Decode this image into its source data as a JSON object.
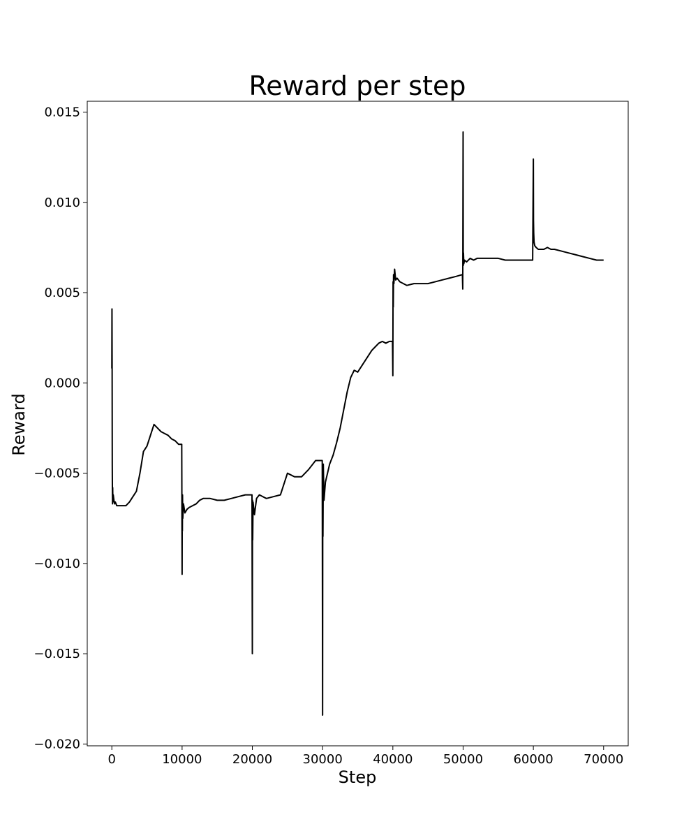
{
  "chart_data": {
    "type": "line",
    "title": "Reward per step",
    "xlabel": "Step",
    "ylabel": "Reward",
    "xlim": [
      -3500,
      73500
    ],
    "ylim": [
      -0.0201,
      0.0156
    ],
    "xticks": [
      0,
      10000,
      20000,
      30000,
      40000,
      50000,
      60000,
      70000
    ],
    "xtick_labels": [
      "0",
      "10000",
      "20000",
      "30000",
      "40000",
      "50000",
      "60000",
      "70000"
    ],
    "yticks": [
      -0.02,
      -0.015,
      -0.01,
      -0.005,
      0.0,
      0.005,
      0.01,
      0.015
    ],
    "ytick_labels": [
      "−0.020",
      "−0.015",
      "−0.010",
      "−0.005",
      "0.000",
      "0.005",
      "0.010",
      "0.015"
    ],
    "grid": false,
    "line_color": "#000000",
    "series": [
      {
        "x": [
          0,
          20,
          40,
          60,
          80,
          100,
          120,
          150,
          200,
          300,
          400,
          500,
          700,
          1000,
          1500,
          2000,
          2500,
          3000,
          3500,
          4000,
          4500,
          5000,
          5500,
          6000,
          6500,
          7000,
          7500,
          8000,
          8500,
          9000,
          9500,
          9950,
          10000,
          10020,
          10040,
          10060,
          10100,
          10200,
          10400,
          10700,
          11000,
          11500,
          12000,
          12500,
          13000,
          14000,
          15000,
          16000,
          17000,
          18000,
          19000,
          19950,
          20000,
          20020,
          20050,
          20100,
          20300,
          20600,
          21000,
          22000,
          23000,
          24000,
          24500,
          25000,
          25500,
          26000,
          27000,
          28000,
          29000,
          29950,
          30000,
          30020,
          30050,
          30100,
          30200,
          30400,
          30700,
          31000,
          31500,
          32000,
          32500,
          33000,
          33500,
          34000,
          34500,
          35000,
          35500,
          36000,
          36500,
          37000,
          37500,
          38000,
          38500,
          39000,
          39500,
          39950,
          40000,
          40030,
          40060,
          40100,
          40150,
          40250,
          40400,
          40600,
          41000,
          41500,
          42000,
          43000,
          44000,
          45000,
          46000,
          47000,
          48000,
          49000,
          49900,
          49950,
          50000,
          50020,
          50050,
          50100,
          50200,
          50500,
          51000,
          51500,
          52000,
          53000,
          54000,
          55000,
          56000,
          57000,
          58000,
          59000,
          59900,
          60000,
          60020,
          60050,
          60100,
          60200,
          60400,
          60700,
          61000,
          61500,
          62000,
          62500,
          63000,
          64000,
          65000,
          66000,
          67000,
          68000,
          69000,
          70000
        ],
        "y": [
          0.0008,
          0.0041,
          0.0012,
          -0.0045,
          -0.006,
          -0.0067,
          -0.0058,
          -0.0066,
          -0.0062,
          -0.0065,
          -0.0067,
          -0.0066,
          -0.0068,
          -0.0068,
          -0.0068,
          -0.0068,
          -0.0066,
          -0.0063,
          -0.006,
          -0.005,
          -0.0038,
          -0.0035,
          -0.0029,
          -0.0023,
          -0.0025,
          -0.0027,
          -0.0028,
          -0.0029,
          -0.0031,
          -0.0032,
          -0.0034,
          -0.0034,
          -0.0106,
          -0.0065,
          -0.0082,
          -0.0062,
          -0.0075,
          -0.0067,
          -0.0072,
          -0.007,
          -0.0069,
          -0.0068,
          -0.0067,
          -0.0065,
          -0.0064,
          -0.0064,
          -0.0065,
          -0.0065,
          -0.0064,
          -0.0063,
          -0.0062,
          -0.0062,
          -0.015,
          -0.0065,
          -0.0087,
          -0.0066,
          -0.0073,
          -0.0064,
          -0.0062,
          -0.0064,
          -0.0063,
          -0.0062,
          -0.0056,
          -0.005,
          -0.0051,
          -0.0052,
          -0.0052,
          -0.0048,
          -0.0043,
          -0.0043,
          -0.0184,
          -0.0076,
          -0.0085,
          -0.0045,
          -0.0065,
          -0.0055,
          -0.005,
          -0.0045,
          -0.004,
          -0.0033,
          -0.0025,
          -0.0015,
          -0.0005,
          0.0003,
          0.0007,
          0.0006,
          0.0009,
          0.0012,
          0.0015,
          0.0018,
          0.002,
          0.0022,
          0.0023,
          0.0022,
          0.0023,
          0.0023,
          0.0004,
          0.0056,
          0.0042,
          0.006,
          0.0055,
          0.0063,
          0.0057,
          0.0058,
          0.0056,
          0.0055,
          0.0054,
          0.0055,
          0.0055,
          0.0055,
          0.0056,
          0.0057,
          0.0058,
          0.0059,
          0.006,
          0.0052,
          0.0139,
          0.0065,
          0.0072,
          0.0066,
          0.0068,
          0.0067,
          0.0069,
          0.0068,
          0.0069,
          0.0069,
          0.0069,
          0.0069,
          0.0068,
          0.0068,
          0.0068,
          0.0068,
          0.0068,
          0.0124,
          0.009,
          0.0083,
          0.0078,
          0.0076,
          0.0075,
          0.0074,
          0.0074,
          0.0074,
          0.0075,
          0.0074,
          0.0074,
          0.0073,
          0.0072,
          0.0071,
          0.007,
          0.0069,
          0.0068,
          0.0068
        ]
      }
    ]
  }
}
